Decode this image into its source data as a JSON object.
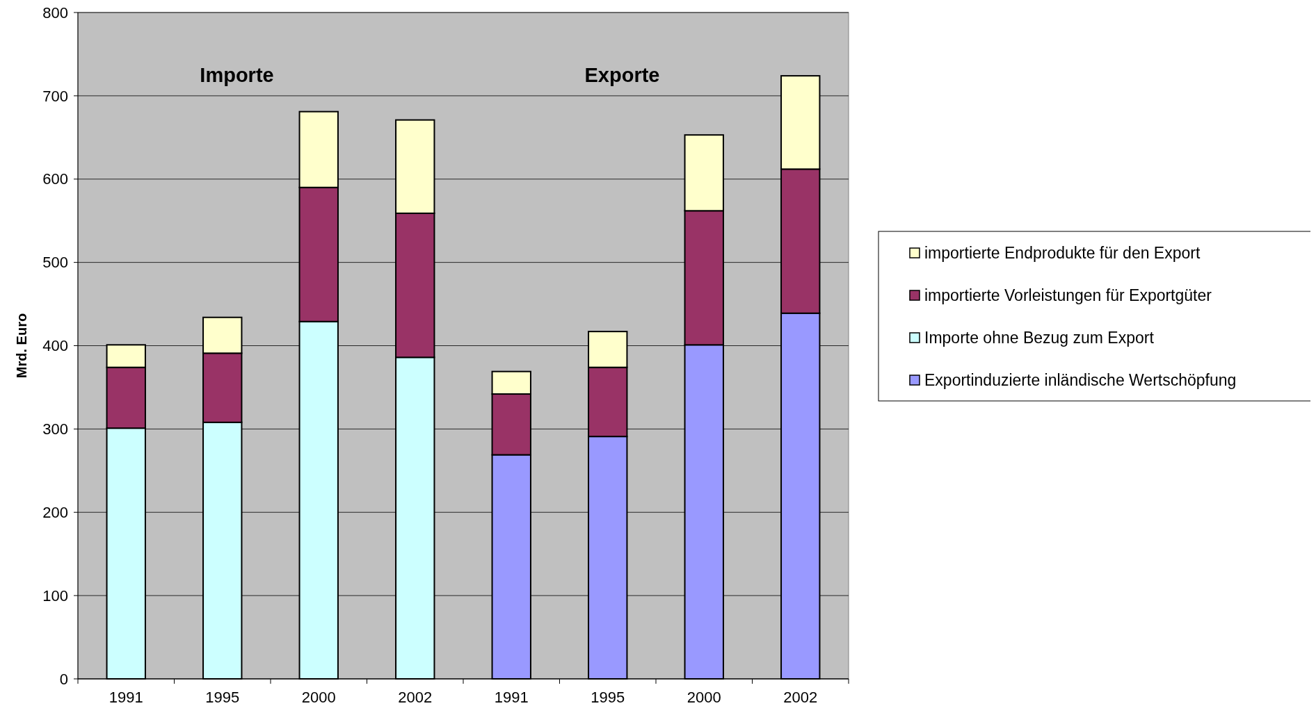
{
  "chart_data": {
    "type": "bar",
    "stacked": true,
    "ylabel": "Mrd. Euro",
    "categories": [
      "1991",
      "1995",
      "2000",
      "2002",
      "1991",
      "1995",
      "2000",
      "2002"
    ],
    "series": [
      {
        "name": "Exportinduzierte inländische Wertschöpfung",
        "color": "#9999ff",
        "values": [
          null,
          null,
          null,
          null,
          269,
          291,
          401,
          439
        ]
      },
      {
        "name": "Importe ohne Bezug zum Export",
        "color": "#ccffff",
        "values": [
          301,
          308,
          429,
          386,
          null,
          null,
          null,
          null
        ]
      },
      {
        "name": "importierte Vorleistungen für Exportgüter",
        "color": "#993366",
        "values": [
          73,
          83,
          161,
          173,
          73,
          83,
          161,
          173
        ]
      },
      {
        "name": "importierte Endprodukte für den Export",
        "color": "#ffffcc",
        "values": [
          27,
          43,
          91,
          112,
          27,
          43,
          91,
          112
        ]
      }
    ],
    "ylim": [
      0,
      800
    ],
    "yticks": [
      0,
      100,
      200,
      300,
      400,
      500,
      600,
      700,
      800
    ],
    "grid": "y",
    "legend": "right",
    "annotations": [
      "Importe",
      "Exporte"
    ]
  }
}
